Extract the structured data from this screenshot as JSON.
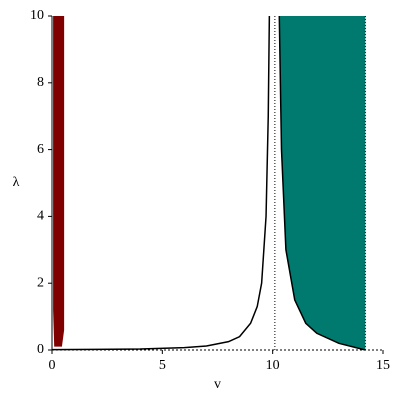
{
  "chart_data": {
    "type": "line",
    "x_label": "v",
    "y_label": "λ",
    "xlim": [
      0,
      15
    ],
    "ylim": [
      0,
      10
    ],
    "xticks": [
      0,
      5,
      10,
      15
    ],
    "yticks": [
      0,
      2,
      4,
      6,
      8,
      10
    ],
    "vlines": [
      10.1,
      14.2
    ],
    "series": [
      {
        "kind": "fill-above",
        "color": "#800000",
        "x": [
          0.05,
          0.1,
          0.45,
          0.55
        ],
        "values": [
          1.2,
          0.1,
          0.1,
          0.6
        ]
      },
      {
        "kind": "fill-above",
        "color": "#007a6e",
        "x": [
          10.3,
          10.4,
          10.6,
          11,
          11.5,
          12,
          13,
          14.2
        ],
        "values": [
          10,
          6,
          3,
          1.5,
          0.8,
          0.5,
          0.2,
          0
        ]
      },
      {
        "kind": "curve",
        "color": "#000000",
        "x": [
          0,
          2,
          4,
          6,
          7,
          8,
          8.5,
          9,
          9.3,
          9.5,
          9.7,
          9.8,
          9.85
        ],
        "values": [
          0.01,
          0.02,
          0.03,
          0.07,
          0.12,
          0.25,
          0.4,
          0.8,
          1.3,
          2,
          4,
          7,
          10
        ]
      },
      {
        "kind": "curve",
        "color": "#000000",
        "x": [
          10.3,
          10.4,
          10.6,
          11,
          11.5,
          12,
          13,
          14.2
        ],
        "values": [
          10,
          6,
          3,
          1.5,
          0.8,
          0.5,
          0.2,
          0
        ]
      }
    ]
  }
}
